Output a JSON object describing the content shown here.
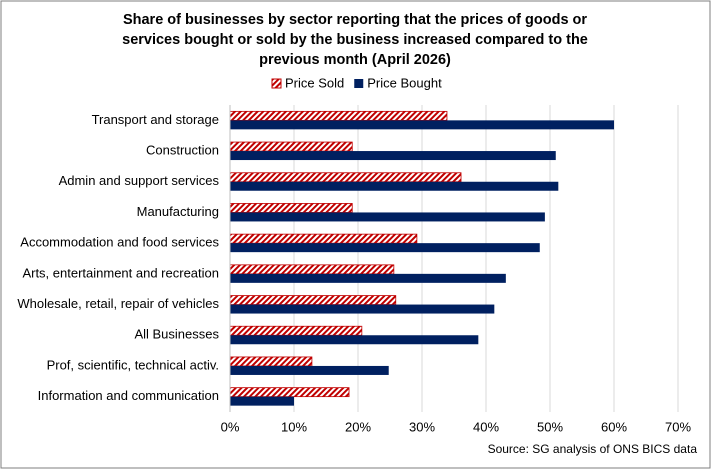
{
  "chart_data": {
    "type": "hbar",
    "title": [
      "Share of businesses by sector reporting that the prices of goods or",
      "services bought or sold by the business increased compared to the",
      "previous month (April 2026)"
    ],
    "categories": [
      "Transport and storage",
      "Construction",
      "Admin and support services",
      "Manufacturing",
      "Accommodation and food services",
      "Arts, entertainment and recreation",
      "Wholesale, retail, repair of vehicles",
      "All Businesses",
      "Prof, scientific, technical activ.",
      "Information and communication"
    ],
    "series": [
      {
        "name": "Price Sold",
        "color": "#c00000",
        "values": [
          33.9,
          19.1,
          36.1,
          19.1,
          29.2,
          25.6,
          25.9,
          20.6,
          12.8,
          18.6
        ]
      },
      {
        "name": "Price Bought",
        "color": "#002060",
        "values": [
          60.0,
          50.9,
          51.3,
          49.2,
          48.4,
          43.1,
          41.3,
          38.8,
          24.8,
          10.0
        ]
      }
    ],
    "xlim": [
      0,
      70
    ],
    "xticks": [
      {
        "value": 0,
        "label": "0%"
      },
      {
        "value": 10,
        "label": "10%"
      },
      {
        "value": 20,
        "label": "20%"
      },
      {
        "value": 30,
        "label": "30%"
      },
      {
        "value": 40,
        "label": "40%"
      },
      {
        "value": 50,
        "label": "50%"
      },
      {
        "value": 60,
        "label": "60%"
      },
      {
        "value": 70,
        "label": "70%"
      }
    ],
    "grid": true,
    "legend": "top",
    "source": "Source: SG analysis of ONS BICS data"
  }
}
